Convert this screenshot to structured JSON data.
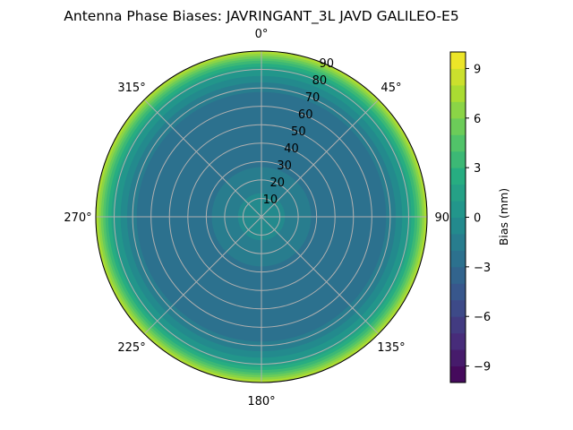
{
  "chart_data": {
    "type": "heatmap",
    "subtype": "polar-filled-contour",
    "title": "Antenna Phase Biases: JAVRINGANT_3L   JAVD GALILEO-E5",
    "angle_ticks": [
      "0°",
      "45°",
      "90°",
      "135°",
      "180°",
      "225°",
      "270°",
      "315°"
    ],
    "angle_tick_values": [
      0,
      45,
      90,
      135,
      180,
      225,
      270,
      315
    ],
    "radial_ticks": [
      "10",
      "20",
      "30",
      "40",
      "50",
      "60",
      "70",
      "80",
      "90"
    ],
    "radial_tick_values": [
      10,
      20,
      30,
      40,
      50,
      60,
      70,
      80,
      90
    ],
    "rlim": [
      0,
      90
    ],
    "theta_zero": "north",
    "theta_direction": "clockwise",
    "grid": true,
    "colormap": "viridis",
    "colorbar": {
      "label": "Bias (mm)",
      "range": [
        -10,
        10
      ],
      "levels_step": 1,
      "ticks": [
        "−9",
        "−6",
        "−3",
        "0",
        "3",
        "6",
        "9"
      ],
      "tick_values": [
        -9,
        -6,
        -3,
        0,
        3,
        6,
        9
      ],
      "placement": "right"
    },
    "radial_profile": {
      "zenith_deg": [
        0,
        10,
        20,
        30,
        40,
        50,
        60,
        70,
        75,
        80,
        85,
        90
      ],
      "bias_mm": [
        -0.5,
        -0.8,
        -1.5,
        -2.2,
        -2.8,
        -3.0,
        -2.8,
        -1.8,
        -0.5,
        1.0,
        4.0,
        8.0
      ]
    }
  }
}
